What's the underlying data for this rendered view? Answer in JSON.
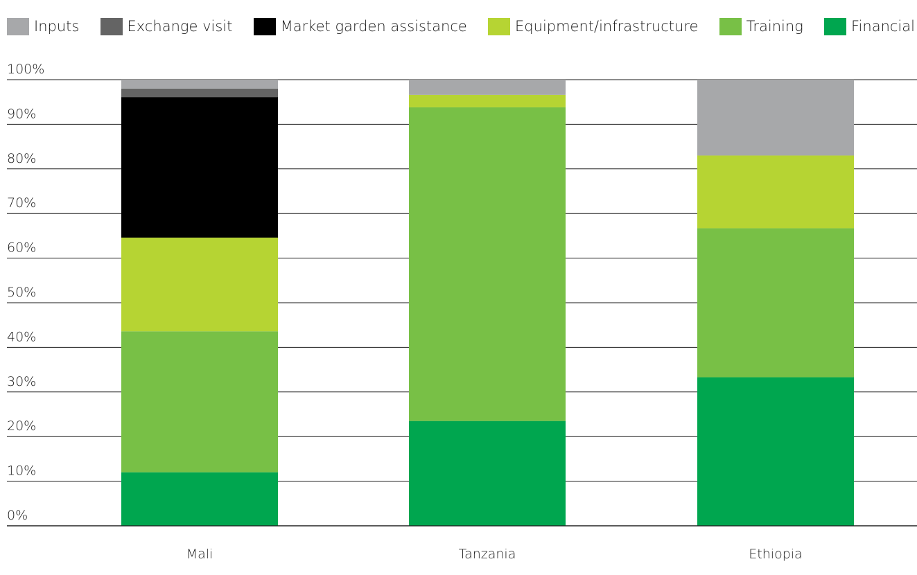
{
  "chart_data": {
    "type": "bar",
    "stacked": true,
    "categories": [
      "Mali",
      "Tanzania",
      "Ethiopia"
    ],
    "series": [
      {
        "name": "Financial",
        "color": "#00a64f",
        "values": [
          12,
          23.5,
          33.3
        ]
      },
      {
        "name": "Training",
        "color": "#78c046",
        "values": [
          31.6,
          70.3,
          33.4
        ]
      },
      {
        "name": "Equipment/infrastructure",
        "color": "#b6d433",
        "values": [
          21,
          2.8,
          16.3
        ]
      },
      {
        "name": "Market garden assistance",
        "color": "#000000",
        "values": [
          31.5,
          0,
          0
        ]
      },
      {
        "name": "Exchange visit",
        "color": "#646464",
        "values": [
          1.9,
          0,
          0
        ]
      },
      {
        "name": "Inputs",
        "color": "#a7a8aa",
        "values": [
          2,
          3.4,
          17
        ]
      }
    ],
    "legend_order": [
      "Inputs",
      "Exchange visit",
      "Market garden assistance",
      "Equipment/infrastructure",
      "Training",
      "Financial"
    ],
    "legend_position": "top",
    "y_ticks": [
      "0%",
      "10%",
      "20%",
      "30%",
      "40%",
      "50%",
      "60%",
      "70%",
      "80%",
      "90%",
      "100%"
    ],
    "ylim": [
      0,
      100
    ],
    "grid": true,
    "title": "",
    "xlabel": "",
    "ylabel": ""
  }
}
